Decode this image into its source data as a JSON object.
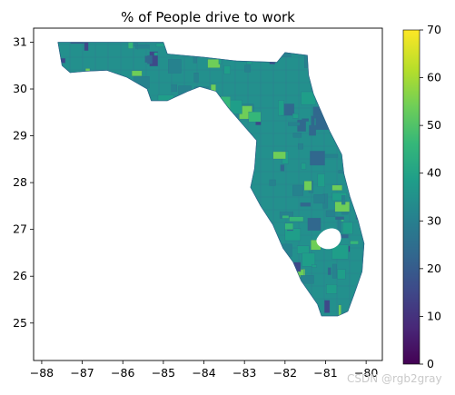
{
  "chart_data": {
    "type": "choropleth",
    "title": "% of People drive to work",
    "x_ticks": [
      "−88",
      "−87",
      "−86",
      "−85",
      "−84",
      "−83",
      "−82",
      "−81",
      "−80"
    ],
    "y_ticks": [
      "25",
      "26",
      "27",
      "28",
      "29",
      "30",
      "31"
    ],
    "xlim": [
      -88.2,
      -79.6
    ],
    "ylim": [
      24.2,
      31.3
    ],
    "colorbar": {
      "ticks": [
        "0",
        "10",
        "20",
        "30",
        "40",
        "50",
        "60",
        "70"
      ],
      "range": [
        0,
        70
      ],
      "colormap": "viridis"
    },
    "region": "Florida census tracts",
    "grid": false
  },
  "watermark": "CSDN @rgb2gray",
  "colors": {
    "viridis": [
      "#440154",
      "#482878",
      "#3e4989",
      "#31688e",
      "#26828e",
      "#1f9e89",
      "#35b779",
      "#6ece58",
      "#b5de2b",
      "#fde725"
    ]
  }
}
